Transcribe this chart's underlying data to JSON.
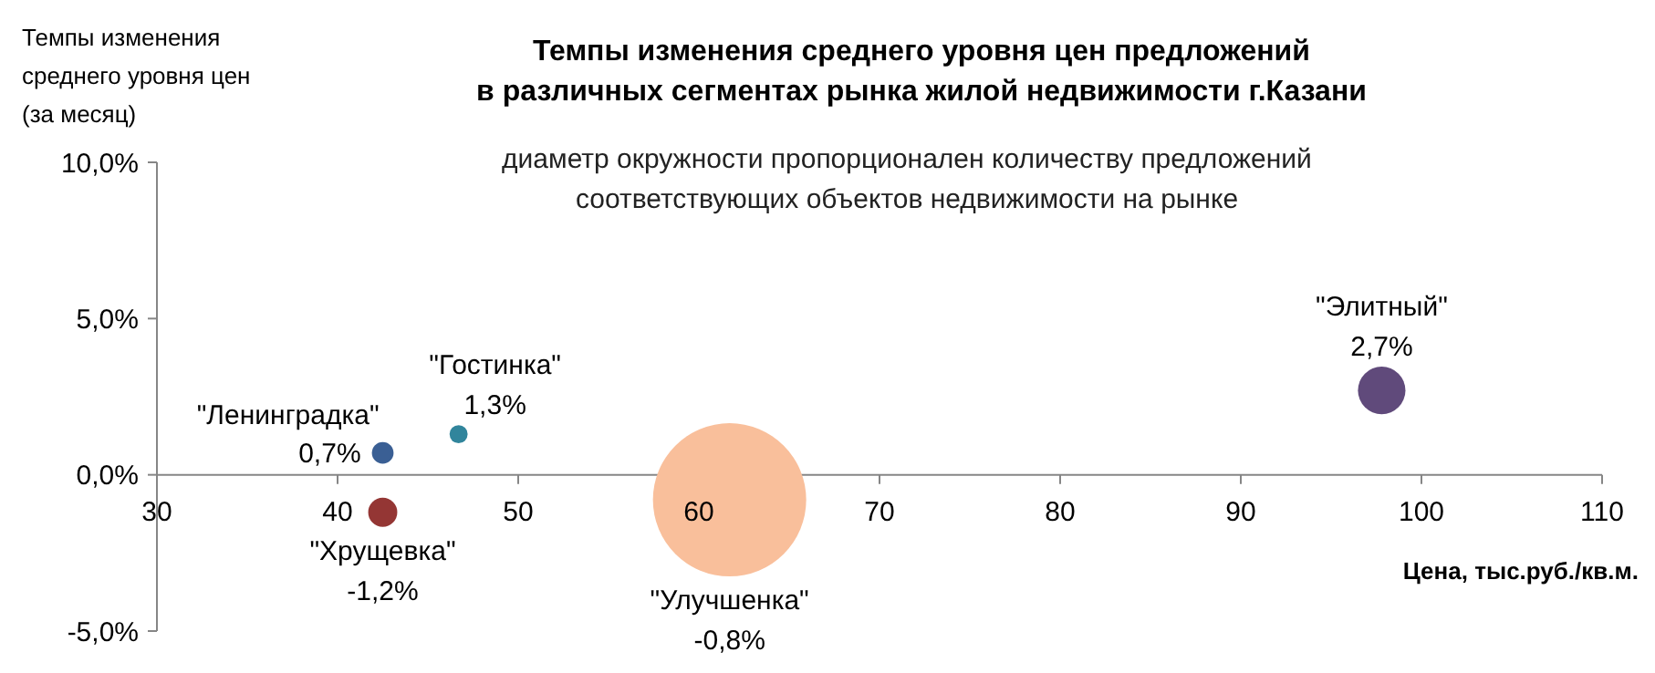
{
  "chart_data": {
    "type": "bubble",
    "title": "Темпы изменения среднего уровня цен предложений\nв различных сегментах рынка жилой недвижимости г.Казани",
    "subtitle": "диаметр окружности пропорционален количеству предложений\nсоответствующих объектов недвижимости на рынке",
    "xlabel": "Цена, тыс.руб./кв.м.",
    "ylabel": "Темпы изменения\nсреднего уровня цен\n(за месяц)",
    "xlim": [
      30,
      110
    ],
    "xticks": [
      30,
      40,
      50,
      60,
      70,
      80,
      90,
      100,
      110
    ],
    "ylim": [
      -5,
      10
    ],
    "yticks": [
      {
        "value": -5,
        "label": "-5,0%"
      },
      {
        "value": 0,
        "label": "0,0%"
      },
      {
        "value": 5,
        "label": "5,0%"
      },
      {
        "value": 10,
        "label": "10,0%"
      }
    ],
    "grid": false,
    "series": [
      {
        "name": "\"Ленинградка\"",
        "color": "#3a5f94",
        "x": [
          42.5
        ],
        "values": [
          0.7
        ],
        "sizes": [
          0.02
        ],
        "value_labels": [
          "0,7%"
        ]
      },
      {
        "name": "\"Гостинка\"",
        "color": "#31859c",
        "x": [
          46.7
        ],
        "values": [
          1.3
        ],
        "sizes": [
          0.014
        ],
        "value_labels": [
          "1,3%"
        ]
      },
      {
        "name": "\"Хрущевка\"",
        "color": "#943634",
        "x": [
          42.5
        ],
        "values": [
          -1.2
        ],
        "sizes": [
          0.036
        ],
        "value_labels": [
          "-1,2%"
        ]
      },
      {
        "name": "\"Улучшенка\"",
        "color": "#f9bf9b",
        "x": [
          61.7
        ],
        "values": [
          -0.8
        ],
        "sizes": [
          1
        ],
        "value_labels": [
          "-0,8%"
        ]
      },
      {
        "name": "\"Элитный\"",
        "color": "#604a7b",
        "x": [
          97.8
        ],
        "values": [
          2.7
        ],
        "sizes": [
          0.096
        ],
        "value_labels": [
          "2,7%"
        ]
      }
    ]
  }
}
